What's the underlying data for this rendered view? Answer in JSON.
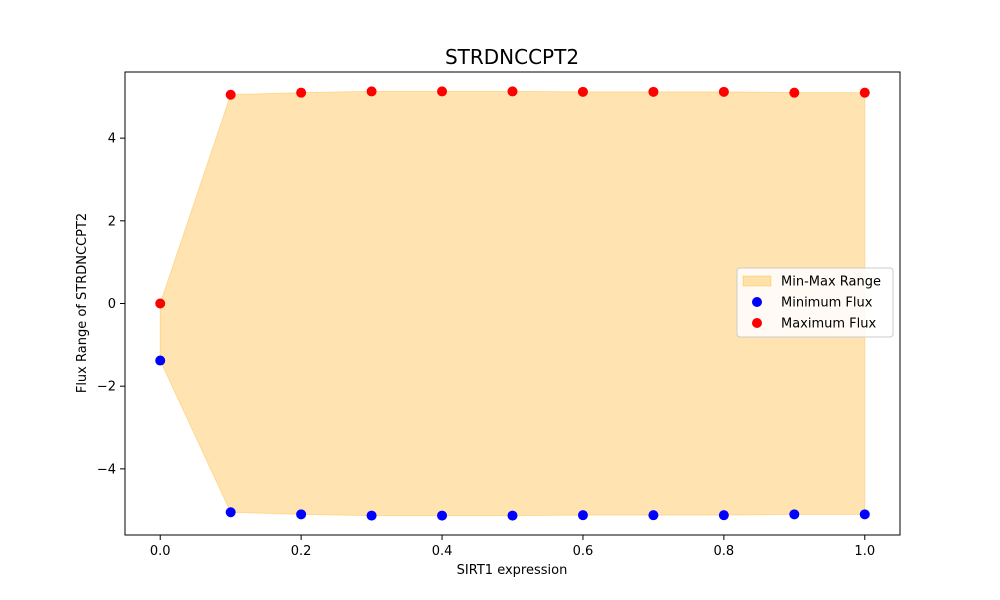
{
  "chart_data": {
    "type": "area",
    "title": "STRDNCCPT2",
    "xlabel": "SIRT1 expression",
    "ylabel": "Flux Range of STRDNCCPT2",
    "xlim": [
      -0.05,
      1.05
    ],
    "ylim": [
      -5.6,
      5.6
    ],
    "x": [
      0.0,
      0.1,
      0.2,
      0.3,
      0.4,
      0.5,
      0.6,
      0.7,
      0.8,
      0.9,
      1.0
    ],
    "x_ticks": [
      0.0,
      0.2,
      0.4,
      0.6,
      0.8,
      1.0
    ],
    "x_tick_labels": [
      "0.0",
      "0.2",
      "0.4",
      "0.6",
      "0.8",
      "1.0"
    ],
    "y_ticks": [
      -4,
      -2,
      0,
      2,
      4
    ],
    "y_tick_labels": [
      "−4",
      "−2",
      "0",
      "2",
      "4"
    ],
    "series": [
      {
        "name": "Minimum Flux",
        "kind": "scatter",
        "color": "#0000ff",
        "values": [
          -1.38,
          -5.05,
          -5.1,
          -5.13,
          -5.13,
          -5.13,
          -5.12,
          -5.12,
          -5.12,
          -5.1,
          -5.1
        ]
      },
      {
        "name": "Maximum Flux",
        "kind": "scatter",
        "color": "#ff0000",
        "values": [
          0.0,
          5.05,
          5.1,
          5.13,
          5.13,
          5.13,
          5.12,
          5.12,
          5.12,
          5.1,
          5.1
        ]
      }
    ],
    "fill": {
      "name": "Min-Max Range",
      "color": "#ffa500",
      "opacity": 0.3
    },
    "legend": {
      "position": "center-right",
      "entries": [
        "Min-Max Range",
        "Minimum Flux",
        "Maximum Flux"
      ]
    },
    "grid": false
  }
}
